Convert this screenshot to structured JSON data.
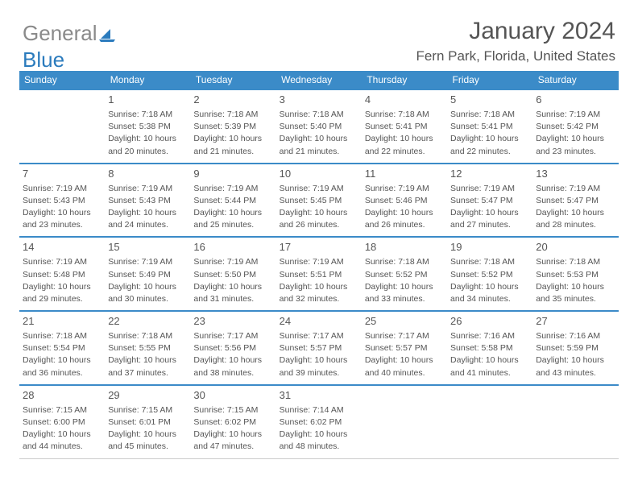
{
  "logo": {
    "text_gray": "General",
    "text_blue": "Blue"
  },
  "title": "January 2024",
  "location": "Fern Park, Florida, United States",
  "colors": {
    "header_bg": "#3b8bc8",
    "header_text": "#ffffff",
    "row_border": "#3b8bc8",
    "body_text": "#555555",
    "logo_gray": "#8a8a8a",
    "logo_blue": "#2b7bbd",
    "background": "#ffffff"
  },
  "day_headers": [
    "Sunday",
    "Monday",
    "Tuesday",
    "Wednesday",
    "Thursday",
    "Friday",
    "Saturday"
  ],
  "weeks": [
    [
      null,
      {
        "n": "1",
        "sunrise": "7:18 AM",
        "sunset": "5:38 PM",
        "daylight": "10 hours and 20 minutes."
      },
      {
        "n": "2",
        "sunrise": "7:18 AM",
        "sunset": "5:39 PM",
        "daylight": "10 hours and 21 minutes."
      },
      {
        "n": "3",
        "sunrise": "7:18 AM",
        "sunset": "5:40 PM",
        "daylight": "10 hours and 21 minutes."
      },
      {
        "n": "4",
        "sunrise": "7:18 AM",
        "sunset": "5:41 PM",
        "daylight": "10 hours and 22 minutes."
      },
      {
        "n": "5",
        "sunrise": "7:18 AM",
        "sunset": "5:41 PM",
        "daylight": "10 hours and 22 minutes."
      },
      {
        "n": "6",
        "sunrise": "7:19 AM",
        "sunset": "5:42 PM",
        "daylight": "10 hours and 23 minutes."
      }
    ],
    [
      {
        "n": "7",
        "sunrise": "7:19 AM",
        "sunset": "5:43 PM",
        "daylight": "10 hours and 23 minutes."
      },
      {
        "n": "8",
        "sunrise": "7:19 AM",
        "sunset": "5:43 PM",
        "daylight": "10 hours and 24 minutes."
      },
      {
        "n": "9",
        "sunrise": "7:19 AM",
        "sunset": "5:44 PM",
        "daylight": "10 hours and 25 minutes."
      },
      {
        "n": "10",
        "sunrise": "7:19 AM",
        "sunset": "5:45 PM",
        "daylight": "10 hours and 26 minutes."
      },
      {
        "n": "11",
        "sunrise": "7:19 AM",
        "sunset": "5:46 PM",
        "daylight": "10 hours and 26 minutes."
      },
      {
        "n": "12",
        "sunrise": "7:19 AM",
        "sunset": "5:47 PM",
        "daylight": "10 hours and 27 minutes."
      },
      {
        "n": "13",
        "sunrise": "7:19 AM",
        "sunset": "5:47 PM",
        "daylight": "10 hours and 28 minutes."
      }
    ],
    [
      {
        "n": "14",
        "sunrise": "7:19 AM",
        "sunset": "5:48 PM",
        "daylight": "10 hours and 29 minutes."
      },
      {
        "n": "15",
        "sunrise": "7:19 AM",
        "sunset": "5:49 PM",
        "daylight": "10 hours and 30 minutes."
      },
      {
        "n": "16",
        "sunrise": "7:19 AM",
        "sunset": "5:50 PM",
        "daylight": "10 hours and 31 minutes."
      },
      {
        "n": "17",
        "sunrise": "7:19 AM",
        "sunset": "5:51 PM",
        "daylight": "10 hours and 32 minutes."
      },
      {
        "n": "18",
        "sunrise": "7:18 AM",
        "sunset": "5:52 PM",
        "daylight": "10 hours and 33 minutes."
      },
      {
        "n": "19",
        "sunrise": "7:18 AM",
        "sunset": "5:52 PM",
        "daylight": "10 hours and 34 minutes."
      },
      {
        "n": "20",
        "sunrise": "7:18 AM",
        "sunset": "5:53 PM",
        "daylight": "10 hours and 35 minutes."
      }
    ],
    [
      {
        "n": "21",
        "sunrise": "7:18 AM",
        "sunset": "5:54 PM",
        "daylight": "10 hours and 36 minutes."
      },
      {
        "n": "22",
        "sunrise": "7:18 AM",
        "sunset": "5:55 PM",
        "daylight": "10 hours and 37 minutes."
      },
      {
        "n": "23",
        "sunrise": "7:17 AM",
        "sunset": "5:56 PM",
        "daylight": "10 hours and 38 minutes."
      },
      {
        "n": "24",
        "sunrise": "7:17 AM",
        "sunset": "5:57 PM",
        "daylight": "10 hours and 39 minutes."
      },
      {
        "n": "25",
        "sunrise": "7:17 AM",
        "sunset": "5:57 PM",
        "daylight": "10 hours and 40 minutes."
      },
      {
        "n": "26",
        "sunrise": "7:16 AM",
        "sunset": "5:58 PM",
        "daylight": "10 hours and 41 minutes."
      },
      {
        "n": "27",
        "sunrise": "7:16 AM",
        "sunset": "5:59 PM",
        "daylight": "10 hours and 43 minutes."
      }
    ],
    [
      {
        "n": "28",
        "sunrise": "7:15 AM",
        "sunset": "6:00 PM",
        "daylight": "10 hours and 44 minutes."
      },
      {
        "n": "29",
        "sunrise": "7:15 AM",
        "sunset": "6:01 PM",
        "daylight": "10 hours and 45 minutes."
      },
      {
        "n": "30",
        "sunrise": "7:15 AM",
        "sunset": "6:02 PM",
        "daylight": "10 hours and 47 minutes."
      },
      {
        "n": "31",
        "sunrise": "7:14 AM",
        "sunset": "6:02 PM",
        "daylight": "10 hours and 48 minutes."
      },
      null,
      null,
      null
    ]
  ],
  "labels": {
    "sunrise": "Sunrise: ",
    "sunset": "Sunset: ",
    "daylight": "Daylight: "
  }
}
